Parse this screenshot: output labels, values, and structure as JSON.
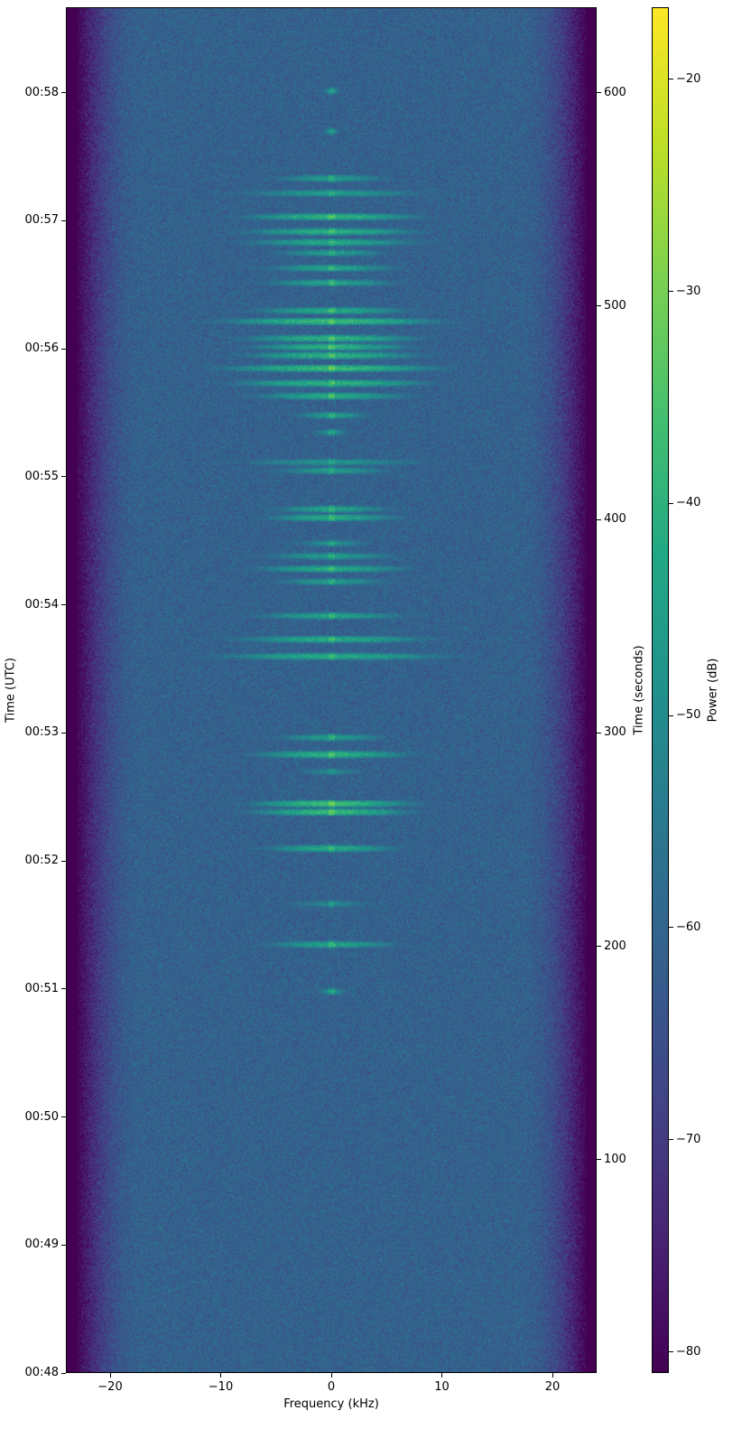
{
  "chart_data": {
    "type": "heatmap",
    "title": "",
    "xlabel": "Frequency (kHz)",
    "ylabel_left": "Time (UTC)",
    "ylabel_right": "Time (seconds)",
    "colorbar_label": "Power (dB)",
    "colormap": "viridis",
    "xlim": [
      -24,
      24
    ],
    "ylim_seconds": [
      0,
      640
    ],
    "clim": [
      -81,
      -16.6
    ],
    "x_ticks": [
      -20,
      -10,
      0,
      10,
      20
    ],
    "x_tick_labels": [
      "−20",
      "−10",
      "0",
      "10",
      "20"
    ],
    "left_ticks_seconds": [
      0,
      60,
      120,
      180,
      240,
      300,
      360,
      420,
      480,
      540,
      600
    ],
    "left_tick_labels": [
      "00:48",
      "00:49",
      "00:50",
      "00:51",
      "00:52",
      "00:53",
      "00:54",
      "00:55",
      "00:56",
      "00:57",
      "00:58"
    ],
    "right_ticks": [
      100,
      200,
      300,
      400,
      500,
      600
    ],
    "right_tick_labels": [
      "100",
      "200",
      "300",
      "400",
      "500",
      "600"
    ],
    "colorbar_ticks": [
      -20,
      -30,
      -40,
      -50,
      -60,
      -70,
      -80
    ],
    "colorbar_tick_labels": [
      "−20",
      "−30",
      "−40",
      "−50",
      "−60",
      "−70",
      "−80"
    ],
    "noise_floor_db": -61,
    "passband_khz": [
      -21,
      21
    ],
    "carrier_khz": 0,
    "bursts": [
      {
        "t": 179,
        "halfwidth_khz": 0.8,
        "peak_db": -45
      },
      {
        "t": 201,
        "halfwidth_khz": 3.5,
        "peak_db": -40
      },
      {
        "t": 220,
        "halfwidth_khz": 2.5,
        "peak_db": -48
      },
      {
        "t": 246,
        "halfwidth_khz": 3.5,
        "peak_db": -38
      },
      {
        "t": 263,
        "halfwidth_khz": 4,
        "peak_db": -34
      },
      {
        "t": 267,
        "halfwidth_khz": 4,
        "peak_db": -33
      },
      {
        "t": 282,
        "halfwidth_khz": 2,
        "peak_db": -48
      },
      {
        "t": 290,
        "halfwidth_khz": 4,
        "peak_db": -36
      },
      {
        "t": 298,
        "halfwidth_khz": 3,
        "peak_db": -42
      },
      {
        "t": 336,
        "halfwidth_khz": 6,
        "peak_db": -38
      },
      {
        "t": 344,
        "halfwidth_khz": 5,
        "peak_db": -38
      },
      {
        "t": 355,
        "halfwidth_khz": 4,
        "peak_db": -40
      },
      {
        "t": 371,
        "halfwidth_khz": 3,
        "peak_db": -42
      },
      {
        "t": 377,
        "halfwidth_khz": 4,
        "peak_db": -38
      },
      {
        "t": 383,
        "halfwidth_khz": 3.5,
        "peak_db": -42
      },
      {
        "t": 389,
        "halfwidth_khz": 2,
        "peak_db": -45
      },
      {
        "t": 401,
        "halfwidth_khz": 3.5,
        "peak_db": -38
      },
      {
        "t": 405,
        "halfwidth_khz": 3,
        "peak_db": -40
      },
      {
        "t": 423,
        "halfwidth_khz": 3,
        "peak_db": -42
      },
      {
        "t": 427,
        "halfwidth_khz": 5,
        "peak_db": -44
      },
      {
        "t": 441,
        "halfwidth_khz": 1,
        "peak_db": -45
      },
      {
        "t": 449,
        "halfwidth_khz": 2,
        "peak_db": -42
      },
      {
        "t": 458,
        "halfwidth_khz": 4,
        "peak_db": -38
      },
      {
        "t": 464,
        "halfwidth_khz": 5,
        "peak_db": -36
      },
      {
        "t": 471,
        "halfwidth_khz": 5.5,
        "peak_db": -34
      },
      {
        "t": 477,
        "halfwidth_khz": 4.5,
        "peak_db": -36
      },
      {
        "t": 481,
        "halfwidth_khz": 4,
        "peak_db": -36
      },
      {
        "t": 485,
        "halfwidth_khz": 4.5,
        "peak_db": -36
      },
      {
        "t": 493,
        "halfwidth_khz": 5.5,
        "peak_db": -34
      },
      {
        "t": 498,
        "halfwidth_khz": 4,
        "peak_db": -38
      },
      {
        "t": 511,
        "halfwidth_khz": 3.5,
        "peak_db": -40
      },
      {
        "t": 518,
        "halfwidth_khz": 3.5,
        "peak_db": -40
      },
      {
        "t": 525,
        "halfwidth_khz": 3,
        "peak_db": -42
      },
      {
        "t": 530,
        "halfwidth_khz": 4.5,
        "peak_db": -38
      },
      {
        "t": 535,
        "halfwidth_khz": 4.5,
        "peak_db": -37
      },
      {
        "t": 542,
        "halfwidth_khz": 4.5,
        "peak_db": -36
      },
      {
        "t": 553,
        "halfwidth_khz": 5,
        "peak_db": -42
      },
      {
        "t": 560,
        "halfwidth_khz": 3,
        "peak_db": -42
      },
      {
        "t": 582,
        "halfwidth_khz": 0.5,
        "peak_db": -48
      },
      {
        "t": 601,
        "halfwidth_khz": 0.5,
        "peak_db": -46
      }
    ]
  }
}
